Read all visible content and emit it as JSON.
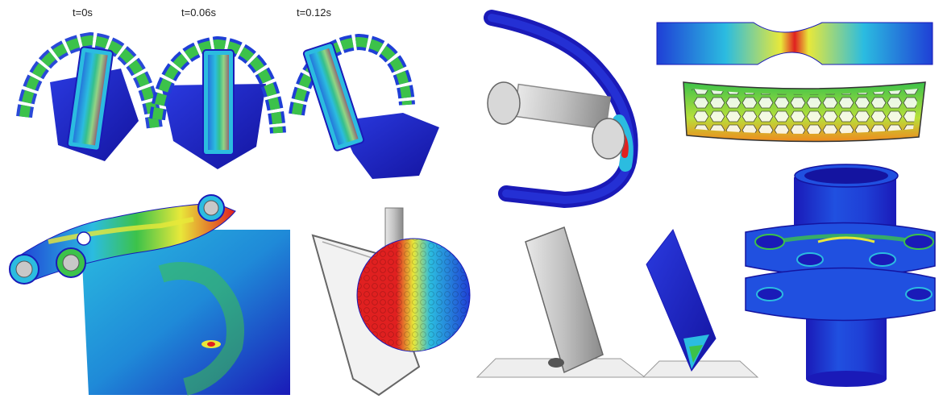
{
  "time_labels": [
    "t=0s",
    "t=0.06s",
    "t=0.12s"
  ],
  "colors": {
    "blue_dark": "#1a1ab8",
    "blue": "#1f3fd6",
    "cyan": "#2bbce0",
    "green": "#3cc24a",
    "yellow": "#e8e83a",
    "orange": "#f08a1e",
    "red": "#e02020",
    "gray": "#c8c8c8",
    "gray_dark": "#8a8a8a"
  }
}
